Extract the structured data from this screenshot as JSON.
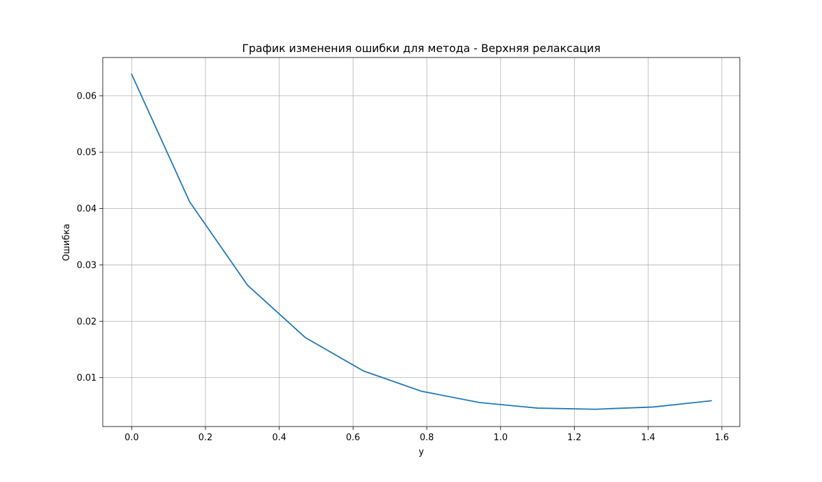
{
  "chart_data": {
    "type": "line",
    "title": "График изменения ошибки для метода - Верхняя релаксация",
    "xlabel": "y",
    "ylabel": "Ошибка",
    "xlim": [
      -0.0785,
      1.6485
    ],
    "ylim": [
      0.00133,
      0.06679
    ],
    "xticks": [
      0.0,
      0.2,
      0.4,
      0.6,
      0.8,
      1.0,
      1.2,
      1.4,
      1.6
    ],
    "xtick_labels": [
      "0.0",
      "0.2",
      "0.4",
      "0.6",
      "0.8",
      "1.0",
      "1.2",
      "1.4",
      "1.6"
    ],
    "yticks": [
      0.01,
      0.02,
      0.03,
      0.04,
      0.05,
      0.06
    ],
    "ytick_labels": [
      "0.01",
      "0.02",
      "0.03",
      "0.04",
      "0.05",
      "0.06"
    ],
    "grid": true,
    "series": [
      {
        "color": "#1f77b4",
        "x": [
          0.0,
          0.157,
          0.314,
          0.471,
          0.628,
          0.785,
          0.942,
          1.1,
          1.257,
          1.414,
          1.571
        ],
        "y": [
          0.0638,
          0.0412,
          0.0264,
          0.0171,
          0.0112,
          0.0076,
          0.0056,
          0.0046,
          0.0044,
          0.0048,
          0.0059
        ]
      }
    ]
  }
}
